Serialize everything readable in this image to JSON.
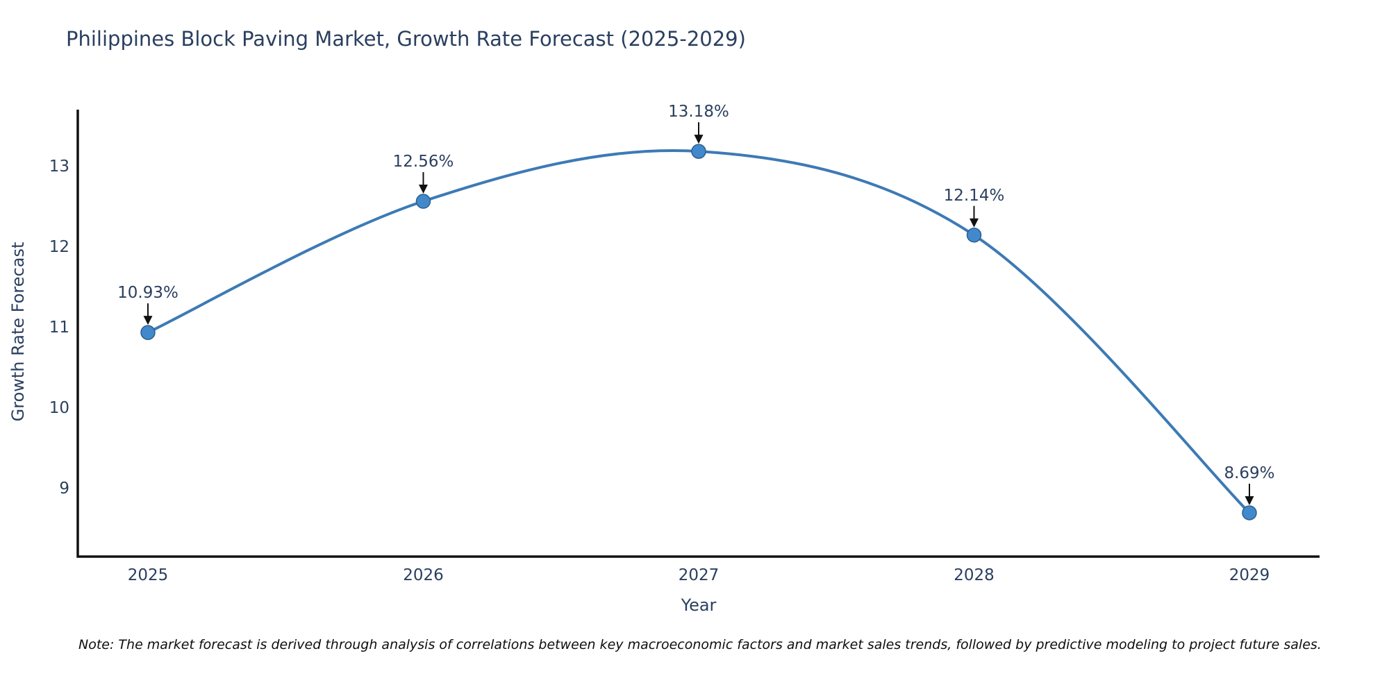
{
  "chart_data": {
    "type": "line",
    "title": "Philippines Block Paving Market, Growth Rate Forecast (2025-2029)",
    "categories": [
      "2025",
      "2026",
      "2027",
      "2028",
      "2029"
    ],
    "values": [
      10.93,
      12.56,
      13.18,
      12.14,
      8.69
    ],
    "point_labels": [
      "10.93%",
      "12.56%",
      "13.18%",
      "12.14%",
      "8.69%"
    ],
    "series": [
      {
        "name": "Growth Rate Forecast",
        "values": [
          10.93,
          12.56,
          13.18,
          12.14,
          8.69
        ]
      }
    ],
    "xlabel": "Year",
    "ylabel": "Growth Rate Forecast",
    "yticks": [
      9,
      10,
      11,
      12,
      13
    ],
    "ylim": [
      8.1,
      13.8
    ],
    "curve": "spline",
    "grid": false,
    "legend_position": "none",
    "line_color": "#3d7ab5",
    "marker_color": "#4289cc",
    "marker_edge_color": "#2b5f8e",
    "axis_line_color": "#111111",
    "text_color": "#2a3f5f",
    "annotation_arrow_color": "#111111"
  },
  "note": "Note: The market forecast is derived through analysis of correlations between key macroeconomic factors and market sales trends, followed by predictive modeling to project future sales."
}
